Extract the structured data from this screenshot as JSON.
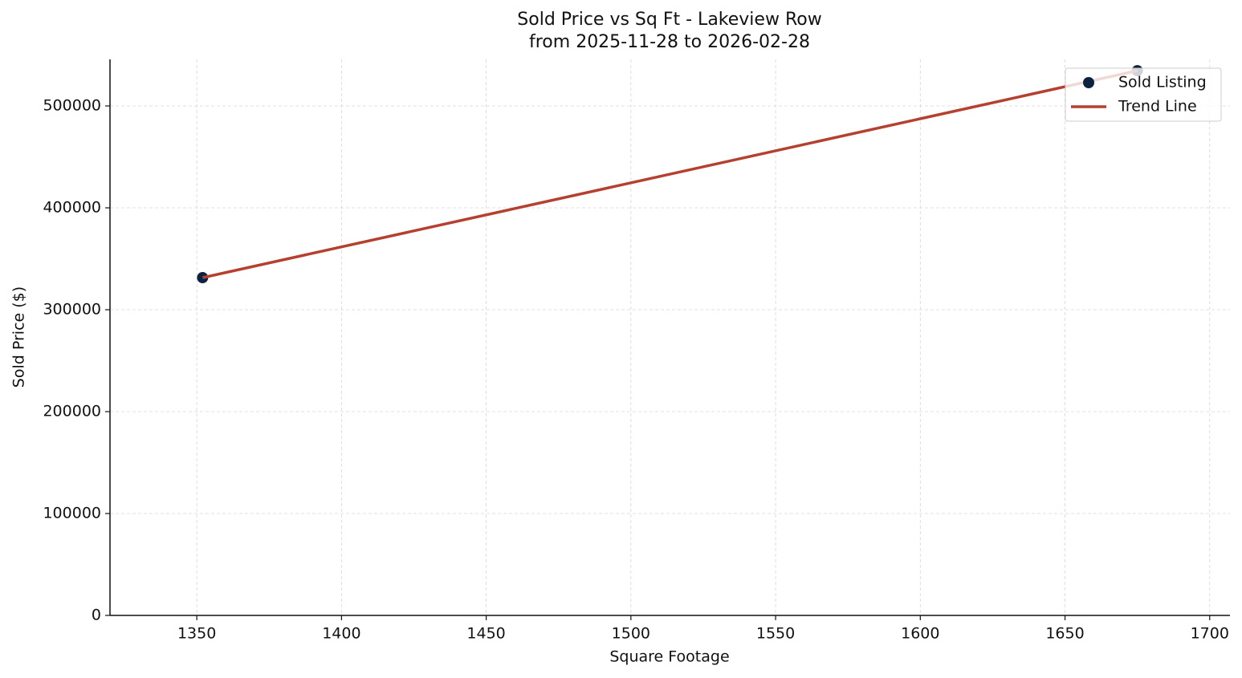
{
  "chart_data": {
    "type": "scatter",
    "title": "Sold Price vs Sq Ft - Lakeview Row",
    "subtitle": "from 2025-11-28 to 2026-02-28",
    "x_label": "Square Footage",
    "y_label": "Sold Price ($)",
    "series": [
      {
        "name": "Sold Listing",
        "color": "#0d2240",
        "mode": "markers",
        "x": [
          1352,
          1675
        ],
        "values": [
          331500,
          534600
        ]
      },
      {
        "name": "Trend Line",
        "color": "#b5402f",
        "mode": "line",
        "x": [
          1352,
          1675
        ],
        "values": [
          331500,
          534600
        ]
      }
    ],
    "xlim": [
      1320,
      1707
    ],
    "ylim": [
      0,
      545700
    ],
    "xticks": [
      1350,
      1400,
      1450,
      1500,
      1550,
      1600,
      1650,
      1700
    ],
    "yticks": [
      0,
      100000,
      200000,
      300000,
      400000,
      500000
    ],
    "grid": true,
    "legend": "upper right"
  }
}
